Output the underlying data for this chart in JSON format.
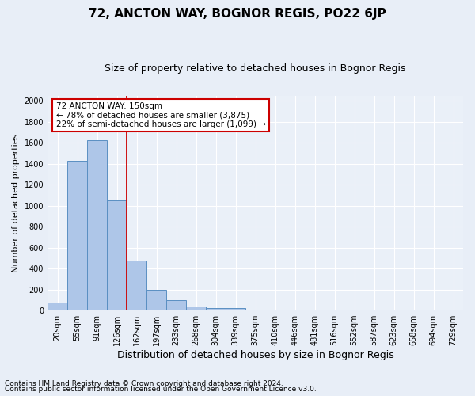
{
  "title1": "72, ANCTON WAY, BOGNOR REGIS, PO22 6JP",
  "title2": "Size of property relative to detached houses in Bognor Regis",
  "xlabel": "Distribution of detached houses by size in Bognor Regis",
  "ylabel": "Number of detached properties",
  "categories": [
    "20sqm",
    "55sqm",
    "91sqm",
    "126sqm",
    "162sqm",
    "197sqm",
    "233sqm",
    "268sqm",
    "304sqm",
    "339sqm",
    "375sqm",
    "410sqm",
    "446sqm",
    "481sqm",
    "516sqm",
    "552sqm",
    "587sqm",
    "623sqm",
    "658sqm",
    "694sqm",
    "729sqm"
  ],
  "values": [
    75,
    1425,
    1625,
    1050,
    475,
    200,
    100,
    35,
    25,
    20,
    10,
    5,
    2,
    1,
    1,
    0,
    0,
    0,
    0,
    0,
    0
  ],
  "bar_color": "#aec6e8",
  "bar_edge_color": "#5a8fc2",
  "vline_x": 3.5,
  "vline_color": "#cc0000",
  "ylim": [
    0,
    2050
  ],
  "yticks": [
    0,
    200,
    400,
    600,
    800,
    1000,
    1200,
    1400,
    1600,
    1800,
    2000
  ],
  "annotation_line1": "72 ANCTON WAY: 150sqm",
  "annotation_line2": "← 78% of detached houses are smaller (3,875)",
  "annotation_line3": "22% of semi-detached houses are larger (1,099) →",
  "annotation_box_color": "#ffffff",
  "annotation_box_edge": "#cc0000",
  "footer1": "Contains HM Land Registry data © Crown copyright and database right 2024.",
  "footer2": "Contains public sector information licensed under the Open Government Licence v3.0.",
  "bg_color": "#e8eef7",
  "plot_bg_color": "#eaf0f8",
  "grid_color": "#ffffff",
  "title1_fontsize": 11,
  "title2_fontsize": 9,
  "xlabel_fontsize": 9,
  "ylabel_fontsize": 8,
  "tick_fontsize": 7,
  "footer_fontsize": 6.5,
  "annotation_fontsize": 7.5
}
